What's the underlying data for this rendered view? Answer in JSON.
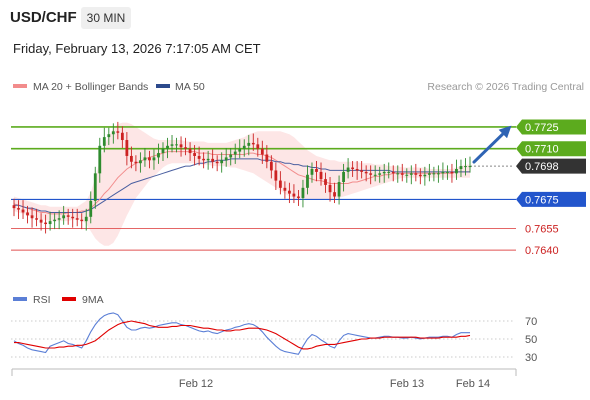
{
  "header": {
    "symbol": "USD/CHF",
    "timeframe": "30 MIN",
    "datetime": "Friday, February 13, 2026 7:17:05 AM CET"
  },
  "legend": {
    "items": [
      {
        "label": "MA 20 + Bollinger Bands",
        "color": "#f28c8c"
      },
      {
        "label": "MA 50",
        "color": "#2c4a8c"
      }
    ],
    "credit": "Research © 2026 Trading Central"
  },
  "rsi_legend": {
    "items": [
      {
        "label": "RSI",
        "color": "#5b7fd6"
      },
      {
        "label": "9MA",
        "color": "#e00000"
      }
    ]
  },
  "colors": {
    "up_candle": "#2e8b2e",
    "down_candle": "#cc2222",
    "resistance": "#5cab1e",
    "support_blue": "#2255cc",
    "support_red": "#e05050",
    "current_price_box": "#333333",
    "arrow": "#2f64b4"
  },
  "chart_data": [
    {
      "type": "candlestick",
      "title": "",
      "x_tick_labels": [
        "Feb 12",
        "Feb 13",
        "Feb 14"
      ],
      "ylim": [
        0.7618,
        0.7745
      ],
      "levels": [
        {
          "value": 0.7725,
          "label": "0.7725",
          "kind": "resistance"
        },
        {
          "value": 0.771,
          "label": "0.7710",
          "kind": "resistance"
        },
        {
          "value": 0.7698,
          "label": "0.7698",
          "kind": "current"
        },
        {
          "value": 0.7675,
          "label": "0.7675",
          "kind": "support"
        },
        {
          "value": 0.7655,
          "label": "0.7655",
          "kind": "support"
        },
        {
          "value": 0.764,
          "label": "0.7640",
          "kind": "support"
        }
      ],
      "closes": [
        0.7669,
        0.7668,
        0.7666,
        0.7664,
        0.7662,
        0.7661,
        0.7659,
        0.7658,
        0.766,
        0.7661,
        0.7662,
        0.7664,
        0.7663,
        0.7662,
        0.7661,
        0.766,
        0.7663,
        0.7674,
        0.7693,
        0.7712,
        0.7718,
        0.772,
        0.7722,
        0.7721,
        0.7716,
        0.7705,
        0.7701,
        0.77,
        0.7702,
        0.7704,
        0.7702,
        0.7704,
        0.7707,
        0.771,
        0.7712,
        0.7713,
        0.7713,
        0.7711,
        0.771,
        0.7707,
        0.7705,
        0.7703,
        0.7702,
        0.7703,
        0.7701,
        0.77,
        0.7702,
        0.7704,
        0.7706,
        0.7708,
        0.771,
        0.7712,
        0.7714,
        0.7713,
        0.771,
        0.7706,
        0.7701,
        0.7695,
        0.7688,
        0.7683,
        0.7681,
        0.7679,
        0.7677,
        0.7676,
        0.7683,
        0.7692,
        0.7696,
        0.7694,
        0.7689,
        0.7685,
        0.768,
        0.7677,
        0.7687,
        0.7694,
        0.7697,
        0.7696,
        0.7695,
        0.7694,
        0.7693,
        0.7692,
        0.7692,
        0.7693,
        0.7694,
        0.7694,
        0.7693,
        0.7693,
        0.7692,
        0.7692,
        0.7693,
        0.7692,
        0.7691,
        0.7692,
        0.7693,
        0.7693,
        0.7693,
        0.7694,
        0.7694,
        0.7693,
        0.7696,
        0.7698,
        0.7698,
        0.7698
      ],
      "ma20": [
        0.7672,
        0.7671,
        0.767,
        0.7669,
        0.7668,
        0.7667,
        0.7666,
        0.7666,
        0.7665,
        0.7665,
        0.7665,
        0.7665,
        0.7666,
        0.7666,
        0.7666,
        0.7667,
        0.7667,
        0.7669,
        0.7672,
        0.7675,
        0.7679,
        0.7682,
        0.7686,
        0.769,
        0.7693,
        0.7696,
        0.7698,
        0.77,
        0.7701,
        0.7703,
        0.7704,
        0.7705,
        0.7706,
        0.7707,
        0.7708,
        0.7708,
        0.7708,
        0.7708,
        0.7708,
        0.7708,
        0.7708,
        0.7707,
        0.7707,
        0.7707,
        0.7706,
        0.7706,
        0.7706,
        0.7706,
        0.7706,
        0.7706,
        0.7706,
        0.7706,
        0.7707,
        0.7707,
        0.7706,
        0.7706,
        0.7705,
        0.7704,
        0.7702,
        0.77,
        0.7698,
        0.7696,
        0.7694,
        0.7692,
        0.7691,
        0.769,
        0.7689,
        0.7688,
        0.7688,
        0.7687,
        0.7686,
        0.7686,
        0.7686,
        0.7686,
        0.7686,
        0.7687,
        0.7687,
        0.7688,
        0.7689,
        0.769,
        0.7691,
        0.7691,
        0.7692,
        0.7692,
        0.7693,
        0.7693,
        0.7693,
        0.7693,
        0.7693,
        0.7693,
        0.7693,
        0.7693,
        0.7693,
        0.7693,
        0.7693,
        0.7693,
        0.7693,
        0.7693,
        0.7694,
        0.7694,
        0.7694,
        0.7694
      ],
      "bb_upper": [
        0.7677,
        0.7676,
        0.7675,
        0.7674,
        0.7673,
        0.7672,
        0.7671,
        0.7671,
        0.767,
        0.767,
        0.767,
        0.767,
        0.767,
        0.767,
        0.767,
        0.7672,
        0.7674,
        0.768,
        0.769,
        0.7702,
        0.7712,
        0.7719,
        0.7724,
        0.7727,
        0.7728,
        0.7728,
        0.7727,
        0.7725,
        0.7723,
        0.7721,
        0.7719,
        0.7717,
        0.7716,
        0.7716,
        0.7716,
        0.7716,
        0.7716,
        0.7716,
        0.7715,
        0.7715,
        0.7715,
        0.7715,
        0.7715,
        0.7714,
        0.7714,
        0.7714,
        0.7714,
        0.7714,
        0.7715,
        0.7716,
        0.7717,
        0.7718,
        0.772,
        0.7721,
        0.7722,
        0.7722,
        0.7722,
        0.7722,
        0.7722,
        0.7722,
        0.7721,
        0.772,
        0.7718,
        0.7715,
        0.7712,
        0.7709,
        0.7707,
        0.7705,
        0.7704,
        0.7703,
        0.7702,
        0.7702,
        0.7701,
        0.7701,
        0.7701,
        0.7701,
        0.7701,
        0.77,
        0.77,
        0.77,
        0.7699,
        0.7699,
        0.7699,
        0.7698,
        0.7698,
        0.7698,
        0.7697,
        0.7697,
        0.7697,
        0.7697,
        0.7697,
        0.7697,
        0.7696,
        0.7696,
        0.7696,
        0.7696,
        0.7696,
        0.7696,
        0.7697,
        0.7698,
        0.7699,
        0.7699
      ],
      "bb_lower": [
        0.7667,
        0.7666,
        0.7665,
        0.7664,
        0.7663,
        0.7662,
        0.7661,
        0.7661,
        0.766,
        0.766,
        0.766,
        0.766,
        0.766,
        0.7661,
        0.7661,
        0.7661,
        0.7658,
        0.7653,
        0.7648,
        0.7645,
        0.7643,
        0.7643,
        0.7645,
        0.765,
        0.7657,
        0.7664,
        0.767,
        0.7676,
        0.768,
        0.7684,
        0.7688,
        0.7691,
        0.7694,
        0.7697,
        0.7699,
        0.77,
        0.77,
        0.77,
        0.77,
        0.77,
        0.77,
        0.7699,
        0.7699,
        0.7699,
        0.7698,
        0.7698,
        0.7698,
        0.7698,
        0.7697,
        0.7697,
        0.7696,
        0.7695,
        0.7694,
        0.7693,
        0.7691,
        0.7689,
        0.7687,
        0.7685,
        0.7683,
        0.7681,
        0.7679,
        0.7677,
        0.7676,
        0.7675,
        0.7675,
        0.7675,
        0.7675,
        0.7675,
        0.7675,
        0.7675,
        0.7675,
        0.7676,
        0.7676,
        0.7677,
        0.7678,
        0.7679,
        0.768,
        0.7681,
        0.7682,
        0.7683,
        0.7684,
        0.7685,
        0.7686,
        0.7687,
        0.7688,
        0.7689,
        0.769,
        0.769,
        0.769,
        0.769,
        0.769,
        0.769,
        0.769,
        0.769,
        0.769,
        0.769,
        0.769,
        0.769,
        0.769,
        0.769,
        0.769,
        0.769
      ],
      "ma50": [
        0.7671,
        0.7671,
        0.767,
        0.7669,
        0.7669,
        0.7668,
        0.7667,
        0.7667,
        0.7666,
        0.7666,
        0.7666,
        0.7666,
        0.7666,
        0.7666,
        0.7666,
        0.7666,
        0.7667,
        0.7668,
        0.767,
        0.7672,
        0.7674,
        0.7676,
        0.7678,
        0.768,
        0.7682,
        0.7684,
        0.7686,
        0.7687,
        0.7688,
        0.7689,
        0.769,
        0.7691,
        0.7692,
        0.7693,
        0.7694,
        0.7695,
        0.7696,
        0.7697,
        0.7698,
        0.7698,
        0.7699,
        0.77,
        0.77,
        0.7701,
        0.7701,
        0.7702,
        0.7702,
        0.7702,
        0.7703,
        0.7703,
        0.7703,
        0.7703,
        0.7703,
        0.7703,
        0.7703,
        0.7702,
        0.7702,
        0.7702,
        0.7701,
        0.7701,
        0.77,
        0.77,
        0.7699,
        0.7699,
        0.7698,
        0.7698,
        0.7697,
        0.7697,
        0.7696,
        0.7696,
        0.7695,
        0.7695,
        0.7695,
        0.7695,
        0.7695,
        0.7695,
        0.7695,
        0.7695,
        0.7695,
        0.7695,
        0.7695,
        0.7695,
        0.7695,
        0.7695,
        0.7694,
        0.7694,
        0.7694,
        0.7694,
        0.7694,
        0.7694,
        0.7694,
        0.7694,
        0.7694,
        0.7694,
        0.7694,
        0.7694,
        0.7694,
        0.7694,
        0.7694,
        0.7694,
        0.7694,
        0.7694
      ]
    },
    {
      "type": "line",
      "title": "",
      "ylim": [
        20,
        80
      ],
      "y_tick_labels": [
        "70",
        "50",
        "30"
      ],
      "series": [
        {
          "name": "RSI",
          "values": [
            48,
            45,
            43,
            40,
            38,
            37,
            36,
            35,
            42,
            44,
            46,
            48,
            45,
            44,
            42,
            40,
            48,
            58,
            66,
            72,
            76,
            78,
            79,
            77,
            70,
            63,
            60,
            60,
            62,
            63,
            62,
            63,
            65,
            66,
            67,
            68,
            68,
            66,
            65,
            63,
            61,
            59,
            58,
            59,
            57,
            56,
            58,
            60,
            61,
            63,
            64,
            66,
            67,
            66,
            63,
            58,
            52,
            47,
            42,
            38,
            36,
            35,
            34,
            33,
            42,
            50,
            55,
            53,
            49,
            46,
            42,
            40,
            48,
            54,
            56,
            55,
            54,
            53,
            52,
            51,
            51,
            52,
            53,
            53,
            52,
            52,
            51,
            51,
            52,
            51,
            50,
            51,
            52,
            52,
            52,
            53,
            53,
            52,
            55,
            57,
            57,
            57
          ]
        },
        {
          "name": "9MA",
          "values": [
            46,
            46,
            45,
            44,
            43,
            42,
            41,
            40,
            40,
            40,
            41,
            41,
            42,
            42,
            43,
            43,
            44,
            46,
            48,
            52,
            56,
            60,
            63,
            66,
            68,
            69,
            70,
            69,
            68,
            67,
            65,
            64,
            63,
            63,
            63,
            64,
            64,
            65,
            65,
            65,
            64,
            63,
            62,
            62,
            61,
            60,
            60,
            59,
            59,
            60,
            60,
            61,
            62,
            62,
            62,
            61,
            60,
            58,
            56,
            53,
            50,
            47,
            44,
            41,
            39,
            39,
            40,
            42,
            43,
            44,
            44,
            44,
            45,
            46,
            47,
            48,
            49,
            50,
            50,
            51,
            51,
            51,
            52,
            52,
            52,
            52,
            52,
            52,
            52,
            52,
            51,
            51,
            51,
            51,
            51,
            52,
            52,
            52,
            52,
            53,
            53,
            54
          ]
        }
      ],
      "reference_lines": [
        70,
        50,
        30
      ]
    }
  ]
}
